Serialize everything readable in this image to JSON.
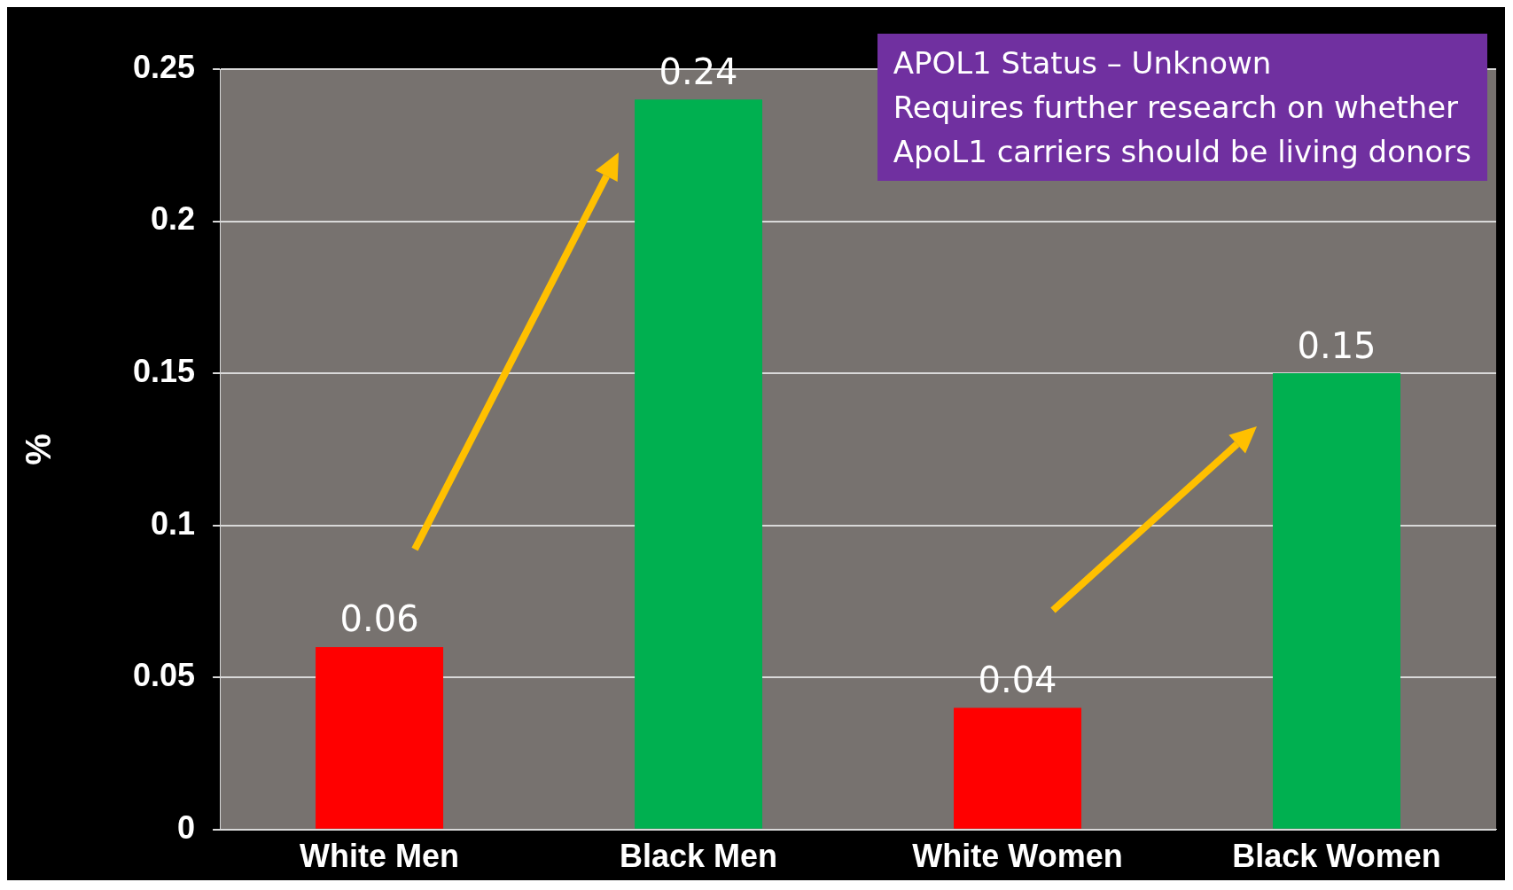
{
  "chart_data": {
    "type": "bar",
    "ylabel": "%",
    "categories": [
      "White Men",
      "Black Men",
      "White Women",
      "Black Women"
    ],
    "values": [
      0.06,
      0.24,
      0.04,
      0.15
    ],
    "colors": [
      "#ff0000",
      "#00b050",
      "#ff0000",
      "#00b050"
    ],
    "ylim": [
      0,
      0.25
    ],
    "yticks": [
      0,
      0.05,
      0.1,
      0.15,
      0.2,
      0.25
    ],
    "grid": "y",
    "data_labels": true,
    "annotations": [
      "APOL1 Status – Unknown",
      "Requires further research on whether",
      "ApoL1 carriers should be living donors"
    ]
  }
}
